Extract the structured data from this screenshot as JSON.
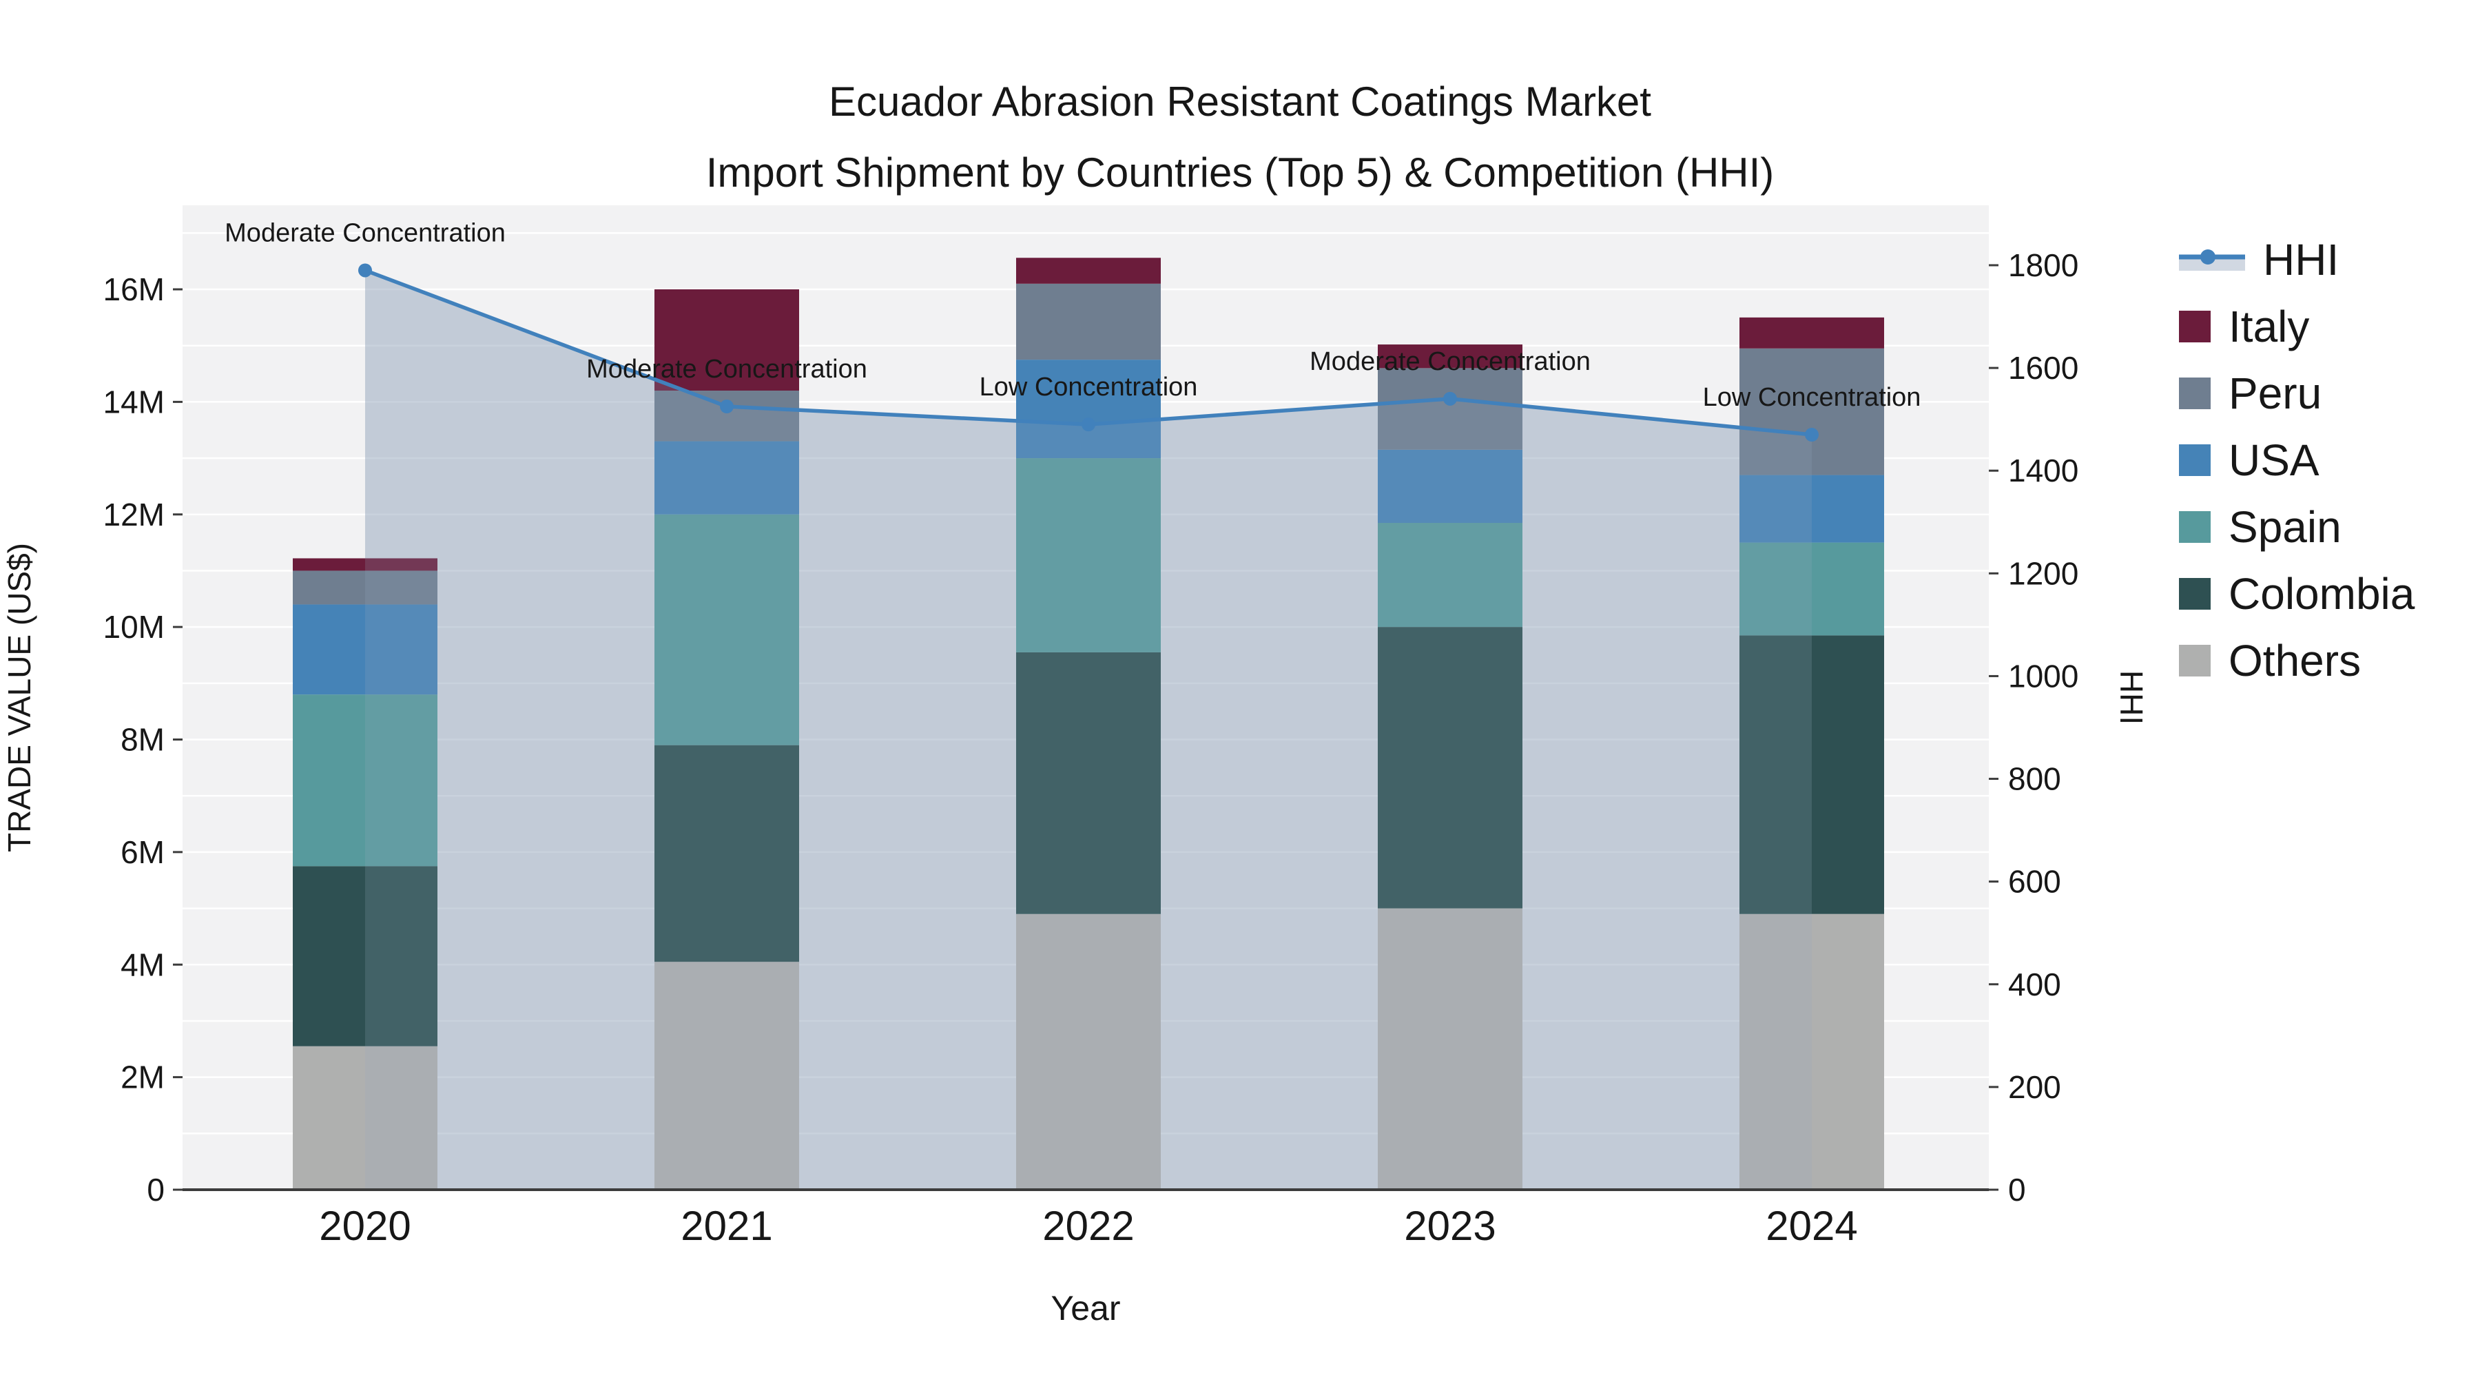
{
  "title": {
    "line1": "Ecuador Abrasion Resistant Coatings Market",
    "line2": "Import Shipment by Countries (Top 5) & Competition (HHI)"
  },
  "chart_data": {
    "type": "bar",
    "subtype": "stacked-bar-with-line-combo",
    "title": "Ecuador Abrasion Resistant Coatings Market Import Shipment by Countries (Top 5) & Competition (HHI)",
    "xlabel": "Year",
    "ylabel_left": "TRADE VALUE (US$)",
    "ylabel_right": "HHI",
    "categories": [
      "2020",
      "2021",
      "2022",
      "2023",
      "2024"
    ],
    "stack_order_bottom_to_top": [
      "Others",
      "Colombia",
      "Spain",
      "USA",
      "Peru",
      "Italy"
    ],
    "series": [
      {
        "name": "Others",
        "color": "#AFB0AF",
        "values_musd": [
          2.55,
          4.05,
          4.9,
          5.0,
          4.9
        ]
      },
      {
        "name": "Colombia",
        "color": "#2E5052",
        "values_musd": [
          3.2,
          3.85,
          4.65,
          5.0,
          4.95
        ]
      },
      {
        "name": "Spain",
        "color": "#579A9D",
        "values_musd": [
          3.05,
          4.1,
          3.45,
          1.85,
          1.65
        ]
      },
      {
        "name": "USA",
        "color": "#4583B7",
        "values_musd": [
          1.6,
          1.3,
          1.75,
          1.3,
          1.2
        ]
      },
      {
        "name": "Peru",
        "color": "#6F7E90",
        "values_musd": [
          0.6,
          0.9,
          1.35,
          1.45,
          2.25
        ]
      },
      {
        "name": "Italy",
        "color": "#6B1C3B",
        "values_musd": [
          0.22,
          1.8,
          0.46,
          0.42,
          0.55
        ]
      }
    ],
    "hhi_line": {
      "name": "HHI",
      "values": [
        1790,
        1525,
        1490,
        1540,
        1470
      ],
      "line_color": "#4181BC",
      "area_fill_base": "152,168,190",
      "marker": "circle"
    },
    "point_annotations": [
      "Moderate Concentration",
      "Moderate Concentration",
      "Low Concentration",
      "Moderate Concentration",
      "Low Concentration"
    ],
    "y_left_ticks": [
      "0",
      "2M",
      "4M",
      "6M",
      "8M",
      "10M",
      "12M",
      "14M",
      "16M"
    ],
    "y_left_tick_values_musd": [
      0,
      2,
      4,
      6,
      8,
      10,
      12,
      14,
      16
    ],
    "y_right_ticks": [
      "0",
      "200",
      "400",
      "600",
      "800",
      "1000",
      "1200",
      "1400",
      "1600",
      "1800"
    ],
    "y_right_tick_values": [
      0,
      200,
      400,
      600,
      800,
      1000,
      1200,
      1400,
      1600,
      1800
    ],
    "ylim_left_musd": [
      0,
      17.5
    ],
    "ylim_right": [
      0,
      1800
    ],
    "grid": "horizontal white gridlines every 1M, plot background light gray",
    "legend_position": "right",
    "legend_order": [
      "HHI",
      "Italy",
      "Peru",
      "USA",
      "Spain",
      "Colombia",
      "Others"
    ]
  },
  "colors": {
    "plot_bg": "#F2F2F3",
    "grid": "#FFFFFF",
    "axis_line": "#3C3C3C",
    "text": "#171717"
  }
}
